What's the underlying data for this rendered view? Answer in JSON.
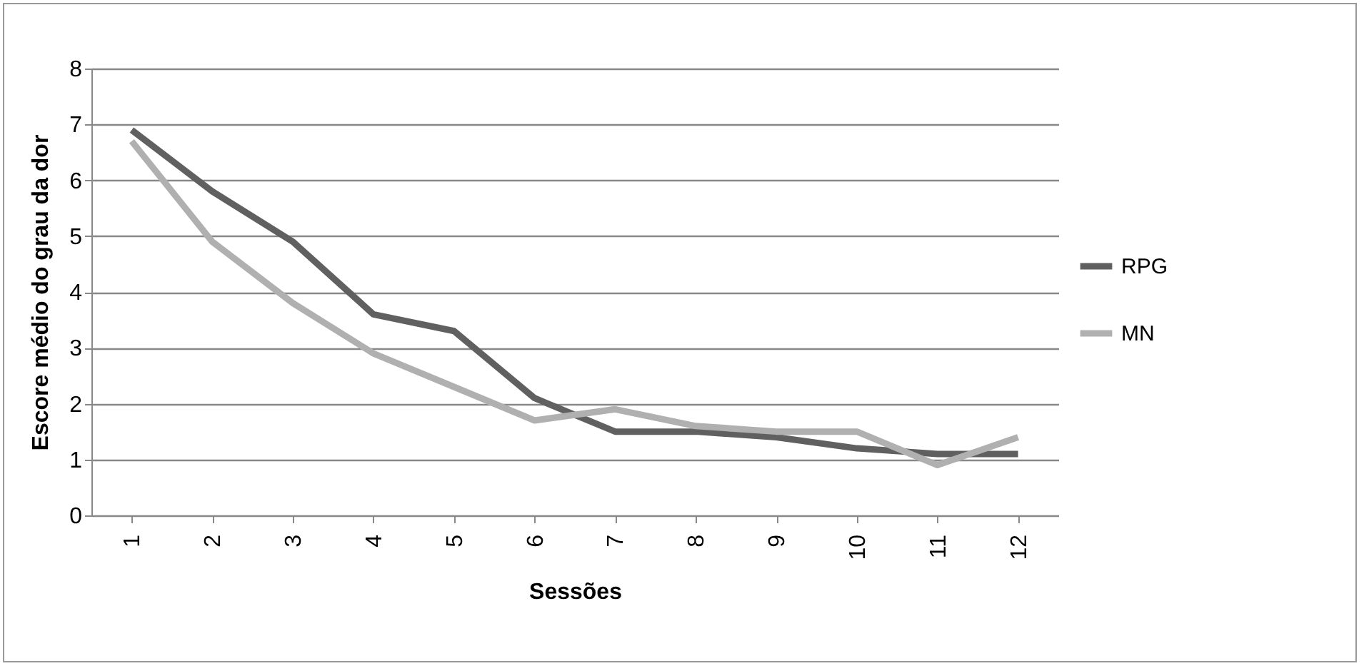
{
  "chart_data": {
    "type": "line",
    "xlabel": "Sessões",
    "ylabel": "Escore médio do grau da dor",
    "categories": [
      "1",
      "2",
      "3",
      "4",
      "5",
      "6",
      "7",
      "8",
      "9",
      "10",
      "11",
      "12"
    ],
    "series": [
      {
        "name": "RPG",
        "color": "#606060",
        "values": [
          6.9,
          5.8,
          4.9,
          3.6,
          3.3,
          2.1,
          1.5,
          1.5,
          1.4,
          1.2,
          1.1,
          1.1
        ]
      },
      {
        "name": "MN",
        "color": "#b0b0b0",
        "values": [
          6.7,
          4.9,
          3.8,
          2.9,
          2.3,
          1.7,
          1.9,
          1.6,
          1.5,
          1.5,
          0.9,
          1.4
        ]
      }
    ],
    "ylim": [
      0,
      8
    ],
    "yticks": [
      0,
      1,
      2,
      3,
      4,
      5,
      6,
      7,
      8
    ],
    "grid": "y",
    "legend": "right",
    "marker": "none",
    "line_style": "solid"
  }
}
